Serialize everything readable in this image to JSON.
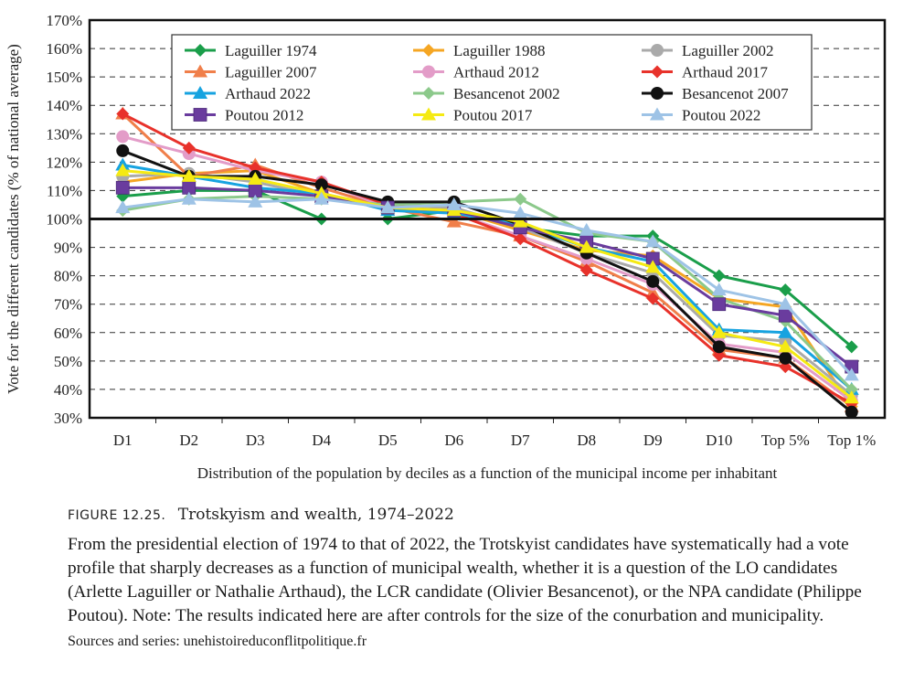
{
  "figure": {
    "label": "FIGURE 12.25.",
    "title": "Trotskyism and wealth, 1974–2022",
    "caption": "From the presidential election of 1974 to that of 2022, the Trotskyist candidates have systematically had a vote profile that sharply decreases as a function of municipal wealth, whether it is a question of the LO candidates (Arlette Laguiller or Nathalie Arthaud), the LCR candidate (Olivier Besancenot), or the NPA candidate (Philippe Poutou). Note: The results indicated here are after controls for the size of the conurbation and municipality.",
    "source": "Sources and series: unehistoireduconflitpolitique.fr"
  },
  "chart_data": {
    "type": "line",
    "title": "",
    "xlabel": "Distribution of the population by deciles as a function of the municipal income per inhabitant",
    "ylabel": "Vote for the different candidates (% of national average)",
    "categories": [
      "D1",
      "D2",
      "D3",
      "D4",
      "D5",
      "D6",
      "D7",
      "D8",
      "D9",
      "D10",
      "Top 5%",
      "Top 1%"
    ],
    "ylim": [
      30,
      170
    ],
    "yticks": [
      30,
      40,
      50,
      60,
      70,
      80,
      90,
      100,
      110,
      120,
      130,
      140,
      150,
      160,
      170
    ],
    "ytick_suffix": "%",
    "reference_line": 100,
    "grid": "dashed",
    "legend_position": "top",
    "series": [
      {
        "name": "Laguiller 1974",
        "color": "#1a9e4a",
        "marker": "diamond",
        "values": [
          108,
          110,
          110,
          100,
          100,
          103,
          97,
          94,
          94,
          80,
          75,
          55
        ]
      },
      {
        "name": "Laguiller 1988",
        "color": "#f5a623",
        "marker": "diamond",
        "values": [
          113,
          116,
          117,
          109,
          104,
          103,
          96,
          89,
          87,
          72,
          69,
          34
        ]
      },
      {
        "name": "Laguiller 2002",
        "color": "#aaaaaa",
        "marker": "circle",
        "values": [
          115,
          116,
          113,
          108,
          105,
          104,
          97,
          88,
          81,
          59,
          57,
          38
        ]
      },
      {
        "name": "Laguiller 2007",
        "color": "#f07f4a",
        "marker": "triangle",
        "values": [
          137,
          115,
          119,
          111,
          104,
          99,
          94,
          85,
          74,
          54,
          51,
          34
        ]
      },
      {
        "name": "Arthaud 2012",
        "color": "#e39cc8",
        "marker": "circle",
        "values": [
          129,
          123,
          117,
          113,
          104,
          102,
          94,
          86,
          77,
          56,
          53,
          36
        ]
      },
      {
        "name": "Arthaud 2017",
        "color": "#e8322b",
        "marker": "diamond",
        "values": [
          137,
          125,
          118,
          113,
          105,
          102,
          93,
          82,
          72,
          52,
          48,
          35
        ]
      },
      {
        "name": "Arthaud 2022",
        "color": "#17a3e0",
        "marker": "triangle",
        "values": [
          119,
          115,
          111,
          109,
          103,
          102,
          98,
          90,
          85,
          61,
          60,
          40
        ]
      },
      {
        "name": "Besancenot 2002",
        "color": "#8cc98b",
        "marker": "diamond",
        "values": [
          103,
          107,
          108,
          107,
          105,
          106,
          107,
          95,
          92,
          72,
          64,
          40
        ]
      },
      {
        "name": "Besancenot 2007",
        "color": "#111111",
        "marker": "circle",
        "values": [
          124,
          115,
          115,
          112,
          106,
          106,
          98,
          88,
          78,
          55,
          51,
          32
        ]
      },
      {
        "name": "Poutou 2012",
        "color": "#6a3c9e",
        "marker": "square",
        "values": [
          111,
          111,
          110,
          108,
          104,
          103,
          97,
          92,
          86,
          70,
          66,
          48
        ]
      },
      {
        "name": "Poutou 2017",
        "color": "#f5ea13",
        "marker": "triangle",
        "values": [
          117,
          115,
          114,
          109,
          104,
          103,
          99,
          90,
          83,
          60,
          55,
          37
        ]
      },
      {
        "name": "Poutou 2022",
        "color": "#9ec3e6",
        "marker": "triangle",
        "values": [
          104,
          107,
          106,
          107,
          104,
          105,
          102,
          96,
          92,
          75,
          70,
          45
        ]
      }
    ]
  }
}
